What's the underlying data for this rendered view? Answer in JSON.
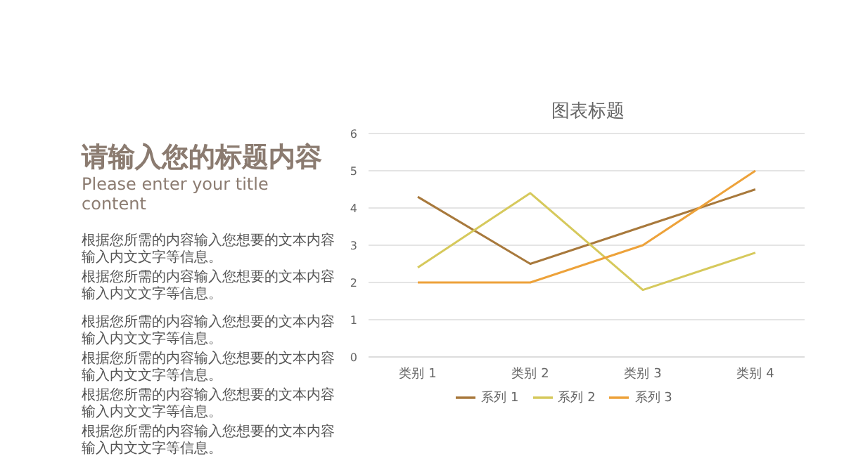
{
  "chart_data": {
    "type": "line",
    "title": "图表标题",
    "annotations": [
      "请输入您的标题内容",
      "Please enter your title content",
      "根据您所需的内容输入您想要的文本内容输入内文文字等信息。",
      "根据您所需的内容输入您想要的文本内容输入内文文字等信息。",
      "根据您所需的内容输入您想要的文本内容输入内文文字等信息。",
      "根据您所需的内容输入您想要的文本内容输入内文文字等信息。",
      "根据您所需的内容输入您想要的文本内容输入内文文字等信息。",
      "根据您所需的内容输入您想要的文本内容输入内文文字等信息。"
    ],
    "categories": [
      "类别 1",
      "类别 2",
      "类别 3",
      "类别 4"
    ],
    "series": [
      {
        "name": "系列 1",
        "color": "#a8793c",
        "values": [
          4.3,
          2.5,
          3.5,
          4.5
        ]
      },
      {
        "name": "系列 2",
        "color": "#d6c95c",
        "values": [
          2.4,
          4.4,
          1.8,
          2.8
        ]
      },
      {
        "name": "系列 3",
        "color": "#eda23a",
        "values": [
          2,
          2,
          3,
          5
        ]
      }
    ],
    "ylim": [
      0,
      6
    ],
    "yticks": [
      0,
      1,
      2,
      3,
      4,
      5,
      6
    ],
    "grid": "y",
    "legend": "bottom",
    "marker": "none",
    "line_style": "solid"
  }
}
